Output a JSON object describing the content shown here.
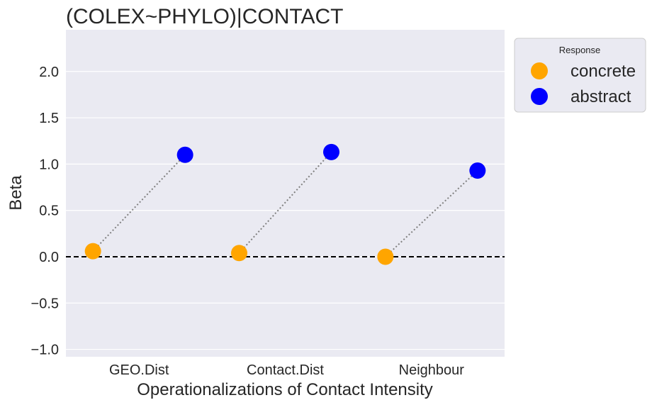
{
  "chart_data": {
    "type": "scatter",
    "title": "(COLEX~PHYLO)|CONTACT",
    "xlabel": "Operationalizations of Contact Intensity",
    "ylabel": "Beta",
    "categories": [
      "GEO.Dist",
      "Contact.Dist",
      "Neighbour"
    ],
    "ylim": [
      -1.08,
      2.45
    ],
    "yticks": [
      -1.0,
      -0.5,
      0.0,
      0.5,
      1.0,
      1.5,
      2.0
    ],
    "ytick_labels": [
      "−1.0",
      "−0.5",
      "0.0",
      "0.5",
      "1.0",
      "1.5",
      "2.0"
    ],
    "series": [
      {
        "name": "concrete",
        "color": "#FFA500",
        "values": [
          0.06,
          0.04,
          0.0
        ]
      },
      {
        "name": "abstract",
        "color": "#0000FF",
        "values": [
          1.1,
          1.13,
          0.93
        ]
      }
    ],
    "reference_line": {
      "y": 0.0,
      "style": "dashed",
      "color": "#000000"
    },
    "connectors": {
      "style": "dotted",
      "color": "#808080"
    },
    "grid": true,
    "background": "#EAEAF2",
    "legend": {
      "title": "Response",
      "placement": "outside-top-right"
    }
  }
}
